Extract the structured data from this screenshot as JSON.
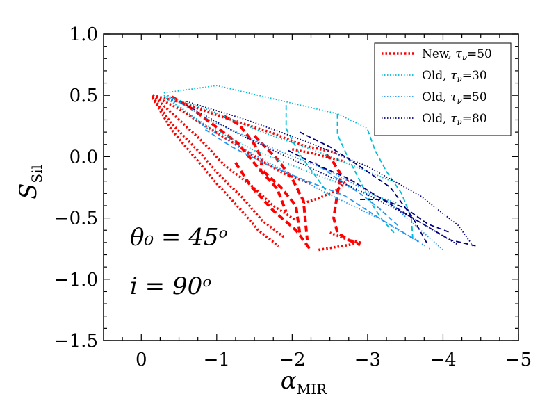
{
  "chart_data": {
    "type": "line",
    "title": "",
    "xlabel": "α",
    "xlabel_sub": "MIR",
    "ylabel": "S",
    "ylabel_sub": "Sil",
    "xlim": [
      0.5,
      -5
    ],
    "ylim": [
      -1.5,
      1.0
    ],
    "xticks": [
      0,
      -1,
      -2,
      -3,
      -4,
      -5
    ],
    "xtick_labels": [
      "0",
      "−1",
      "−2",
      "−3",
      "−4",
      "−5"
    ],
    "yticks": [
      1.0,
      0.5,
      0.0,
      -0.5,
      -1.0,
      -1.5
    ],
    "ytick_labels": [
      "1.0",
      "0.5",
      "0.0",
      "−0.5",
      "−1.0",
      "−1.5"
    ],
    "annotations": [
      {
        "text": "θ₀ = 45ᵒ",
        "x": 0.15,
        "y": -0.72
      },
      {
        "text": "i = 90ᵒ",
        "x": 0.15,
        "y": -1.12
      }
    ],
    "legend_position": "top-right",
    "series": [
      {
        "name": "New, τν=50",
        "legend_prefix": "New, ",
        "legend_tau": "τ",
        "legend_nu": "ν",
        "legend_value": "=50",
        "color": "#ff0000",
        "lines": [
          {
            "style": "dotted",
            "width": 3.5,
            "x": [
              -0.15,
              -0.55,
              -0.95,
              -1.35,
              -1.75,
              -2.15,
              -2.6
            ],
            "y": [
              0.5,
              0.44,
              0.35,
              0.27,
              0.19,
              0.09,
              0.03
            ]
          },
          {
            "style": "dotted",
            "width": 3.5,
            "x": [
              -0.15,
              -0.5,
              -0.85,
              -1.2,
              -1.55,
              -1.9,
              -2.25
            ],
            "y": [
              0.5,
              0.39,
              0.25,
              0.12,
              -0.02,
              -0.14,
              -0.22
            ]
          },
          {
            "style": "dotted",
            "width": 3.5,
            "x": [
              -0.15,
              -0.45,
              -0.8,
              -1.1,
              -1.45,
              -1.75,
              -2.05
            ],
            "y": [
              0.5,
              0.33,
              0.13,
              -0.07,
              -0.23,
              -0.4,
              -0.52
            ]
          },
          {
            "style": "dotted",
            "width": 3.5,
            "x": [
              -0.15,
              -0.4,
              -0.75,
              -1.05,
              -1.35,
              -1.6,
              -1.9
            ],
            "y": [
              0.49,
              0.27,
              0.05,
              -0.16,
              -0.34,
              -0.52,
              -0.66
            ]
          },
          {
            "style": "dotted",
            "width": 3.5,
            "x": [
              -0.15,
              -0.4,
              -0.7,
              -1.0,
              -1.3,
              -1.55,
              -1.82
            ],
            "y": [
              0.48,
              0.22,
              0.0,
              -0.22,
              -0.42,
              -0.6,
              -0.73
            ]
          },
          {
            "style": "dashed",
            "width": 4,
            "x": [
              -0.4,
              -0.65,
              -1.0,
              -1.3
            ],
            "y": [
              0.49,
              0.4,
              0.24,
              0.1
            ]
          },
          {
            "style": "dashed",
            "width": 4,
            "x": [
              -1.1,
              -1.3,
              -1.5,
              -1.6,
              -1.58
            ],
            "y": [
              0.33,
              0.26,
              0.1,
              -0.02,
              -0.12
            ]
          },
          {
            "style": "dashed",
            "width": 4,
            "x": [
              -1.32,
              -1.56,
              -1.8,
              -1.92
            ],
            "y": [
              0.08,
              -0.1,
              -0.26,
              -0.45
            ]
          },
          {
            "style": "dashed",
            "width": 4,
            "x": [
              -1.62,
              -1.85,
              -2.05,
              -2.1
            ],
            "y": [
              -0.12,
              -0.25,
              -0.4,
              -0.62
            ]
          },
          {
            "style": "dashed",
            "width": 4,
            "x": [
              -1.5,
              -1.8,
              -2.0,
              -2.15,
              -2.2
            ],
            "y": [
              0.17,
              -0.02,
              -0.18,
              -0.36,
              -0.68
            ]
          },
          {
            "style": "dashed",
            "width": 4,
            "x": [
              -1.25,
              -1.45,
              -1.75,
              -2.05,
              -2.22,
              -2.25
            ],
            "y": [
              -0.05,
              -0.24,
              -0.44,
              -0.6,
              -0.74,
              -0.72
            ]
          },
          {
            "style": "dashed",
            "width": 4,
            "x": [
              -2.45,
              -2.55,
              -2.65,
              -2.6,
              -2.55,
              -2.6,
              -2.75,
              -2.9
            ],
            "y": [
              0.02,
              -0.05,
              -0.15,
              -0.3,
              -0.5,
              -0.62,
              -0.68,
              -0.72
            ]
          },
          {
            "style": "dotted",
            "width": 3.5,
            "x": [
              -2.35,
              -2.55,
              -2.75,
              -2.9,
              -2.75,
              -2.5
            ],
            "y": [
              -0.76,
              -0.74,
              -0.72,
              -0.7,
              -0.68,
              -0.62
            ]
          },
          {
            "style": "dotted",
            "width": 3.5,
            "x": [
              -2.15,
              -2.35,
              -2.6,
              -2.75
            ],
            "y": [
              -0.38,
              -0.34,
              -0.27,
              -0.18
            ]
          },
          {
            "style": "dotted",
            "width": 3.5,
            "x": [
              -2.0,
              -2.25,
              -2.5,
              -2.7
            ],
            "y": [
              0.06,
              0.03,
              -0.01,
              -0.04
            ]
          }
        ]
      },
      {
        "name": "Old, τν=30",
        "legend_prefix": "Old, ",
        "legend_tau": "τ",
        "legend_nu": "ν",
        "legend_value": "=30",
        "color": "#00bcd4",
        "lines": [
          {
            "style": "dotted",
            "width": 1.8,
            "x": [
              -0.3,
              -1.0,
              -1.9,
              -2.6,
              -3.0
            ],
            "y": [
              0.52,
              0.58,
              0.45,
              0.35,
              0.23
            ]
          },
          {
            "style": "dotted",
            "width": 1.8,
            "x": [
              -0.3,
              -0.9,
              -1.6,
              -2.3,
              -3.0,
              -3.4
            ],
            "y": [
              0.5,
              0.38,
              0.2,
              0.05,
              -0.12,
              -0.22
            ]
          },
          {
            "style": "dotted",
            "width": 1.8,
            "x": [
              -0.3,
              -0.85,
              -1.5,
              -2.2,
              -2.9,
              -3.4
            ],
            "y": [
              0.49,
              0.26,
              0.05,
              -0.12,
              -0.28,
              -0.38
            ]
          },
          {
            "style": "dashed",
            "width": 1.8,
            "x": [
              -1.92,
              -1.92,
              -2.1,
              -2.3,
              -2.5
            ],
            "y": [
              0.42,
              0.23,
              0.02,
              -0.15,
              -0.32
            ]
          },
          {
            "style": "dashed",
            "width": 1.8,
            "x": [
              -2.6,
              -2.6,
              -2.75,
              -2.9,
              -3.05,
              -3.2,
              -3.35
            ],
            "y": [
              0.35,
              0.18,
              -0.02,
              -0.2,
              -0.38,
              -0.52,
              -0.62
            ]
          },
          {
            "style": "dashed",
            "width": 1.8,
            "x": [
              -3.0,
              -3.1,
              -3.25,
              -3.45,
              -3.58,
              -3.6
            ],
            "y": [
              0.22,
              0.05,
              -0.12,
              -0.3,
              -0.5,
              -0.68
            ]
          }
        ]
      },
      {
        "name": "Old, τν=50",
        "legend_prefix": "Old, ",
        "legend_tau": "τ",
        "legend_nu": "ν",
        "legend_value": "=50",
        "color": "#2196f3",
        "lines": [
          {
            "style": "dotted",
            "width": 1.8,
            "x": [
              -0.35,
              -0.9,
              -1.7,
              -2.5,
              -3.3,
              -4.0
            ],
            "y": [
              0.5,
              0.3,
              0.08,
              -0.12,
              -0.38,
              -0.76
            ]
          },
          {
            "style": "dotted",
            "width": 1.8,
            "x": [
              -0.35,
              -0.85,
              -1.6,
              -2.4,
              -3.2,
              -3.85
            ],
            "y": [
              0.49,
              0.24,
              -0.02,
              -0.28,
              -0.52,
              -0.76
            ]
          },
          {
            "style": "dashed",
            "width": 1.8,
            "x": [
              -0.85,
              -1.2,
              -1.65,
              -2.2,
              -2.7,
              -3.2,
              -3.7
            ],
            "y": [
              0.22,
              0.08,
              -0.06,
              -0.2,
              -0.32,
              -0.52,
              -0.7
            ]
          },
          {
            "style": "dashed",
            "width": 1.8,
            "x": [
              -2.3,
              -2.6,
              -2.9,
              -3.15,
              -3.4
            ],
            "y": [
              -0.05,
              -0.18,
              -0.3,
              -0.42,
              -0.56
            ]
          }
        ]
      },
      {
        "name": "Old, τν=80",
        "legend_prefix": "Old, ",
        "legend_tau": "τ",
        "legend_nu": "ν",
        "legend_value": "=80",
        "color": "#000080",
        "lines": [
          {
            "style": "dotted",
            "width": 1.8,
            "x": [
              -0.6,
              -1.4,
              -2.2,
              -3.0,
              -3.7,
              -4.2,
              -4.4
            ],
            "y": [
              0.45,
              0.3,
              0.12,
              -0.08,
              -0.32,
              -0.56,
              -0.73
            ]
          },
          {
            "style": "dotted",
            "width": 1.8,
            "x": [
              -0.6,
              -1.3,
              -2.1,
              -2.9,
              -3.6,
              -4.2
            ],
            "y": [
              0.42,
              0.18,
              -0.05,
              -0.28,
              -0.5,
              -0.72
            ]
          },
          {
            "style": "dashed",
            "width": 1.8,
            "x": [
              -1.95,
              -2.3,
              -2.75,
              -3.2,
              -3.65,
              -4.1,
              -4.45
            ],
            "y": [
              0.05,
              -0.06,
              -0.18,
              -0.35,
              -0.52,
              -0.68,
              -0.73
            ]
          },
          {
            "style": "dashed",
            "width": 1.8,
            "x": [
              -2.1,
              -2.5,
              -2.9,
              -3.3,
              -3.6,
              -3.8
            ],
            "y": [
              0.2,
              0.08,
              -0.08,
              -0.25,
              -0.5,
              -0.72
            ]
          },
          {
            "style": "dashed",
            "width": 1.8,
            "x": [
              -2.9,
              -3.2,
              -3.5,
              -3.8,
              -4.1
            ],
            "y": [
              -0.35,
              -0.35,
              -0.42,
              -0.55,
              -0.62
            ]
          }
        ]
      }
    ]
  }
}
